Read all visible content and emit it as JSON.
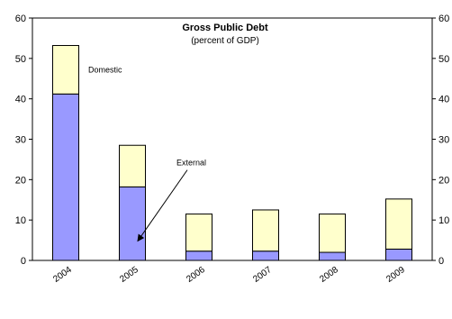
{
  "chart_data": {
    "type": "bar",
    "stacked": true,
    "title": "Gross Public Debt",
    "subtitle": "(percent of GDP)",
    "categories": [
      "2004",
      "2005",
      "2006",
      "2007",
      "2008",
      "2009"
    ],
    "series": [
      {
        "name": "External",
        "color": "#9999ff",
        "values": [
          41.2,
          18.2,
          2.3,
          2.3,
          2.0,
          2.8
        ]
      },
      {
        "name": "Domestic",
        "color": "#ffffcc",
        "values": [
          12.0,
          10.3,
          9.2,
          10.2,
          9.5,
          12.4
        ]
      }
    ],
    "ylim": [
      0,
      60
    ],
    "y_ticks": [
      "0",
      "10",
      "20",
      "30",
      "40",
      "50",
      "60"
    ],
    "secondary_y_ticks": [
      "0",
      "10",
      "20",
      "30",
      "40",
      "50",
      "60"
    ],
    "annotations": [
      "Domestic",
      "External"
    ],
    "grid": false,
    "legend": "none"
  }
}
